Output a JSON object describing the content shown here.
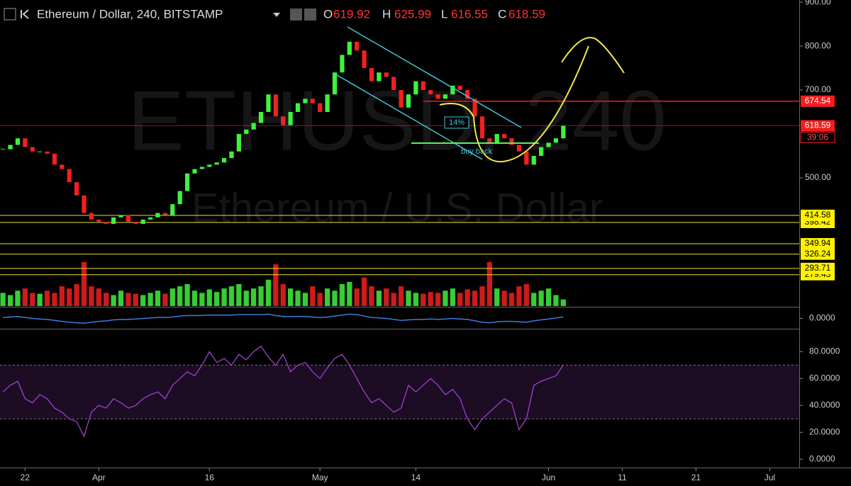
{
  "chart_data": {
    "type": "candlestick",
    "header": {
      "symbol": "Ethereum / Dollar, 240, BITSTAMP",
      "o_label": "O",
      "o": 619.92,
      "h_label": "H",
      "h": 625.99,
      "l_label": "L",
      "l": 616.55,
      "c_label": "C",
      "c": 618.59
    },
    "watermark": {
      "line1": "ETHUSD, 240",
      "line2": "Ethereum / U.S. Dollar"
    },
    "annotations": {
      "percent": "14%",
      "buy": "buy back"
    },
    "countdown": "39:06",
    "xlim": [
      -0.4,
      108
    ],
    "xticks": [
      {
        "value": 3,
        "label": "22"
      },
      {
        "value": 13,
        "label": "Apr"
      },
      {
        "value": 28,
        "label": "16"
      },
      {
        "value": 43,
        "label": "May"
      },
      {
        "value": 56,
        "label": "14"
      },
      {
        "value": 74,
        "label": "Jun"
      },
      {
        "value": 84,
        "label": "11"
      },
      {
        "value": 94,
        "label": "21"
      },
      {
        "value": 104,
        "label": "Jul"
      }
    ],
    "ylim": [
      208,
      905
    ],
    "yticks": [
      {
        "value": 900,
        "label": "900.00"
      },
      {
        "value": 800,
        "label": "800.00"
      },
      {
        "value": 700,
        "label": "700.00"
      },
      {
        "value": 500,
        "label": "500.00"
      }
    ],
    "up_color": "#3ef23e",
    "down_color": "#f22020",
    "close": [
      565,
      575,
      590,
      570,
      560,
      560,
      555,
      530,
      520,
      490,
      460,
      420,
      405,
      400,
      395,
      410,
      415,
      400,
      395,
      405,
      410,
      420,
      415,
      440,
      470,
      510,
      520,
      525,
      530,
      535,
      545,
      560,
      600,
      610,
      625,
      650,
      690,
      640,
      620,
      650,
      670,
      680,
      670,
      650,
      690,
      740,
      780,
      810,
      790,
      750,
      720,
      740,
      730,
      700,
      660,
      690,
      720,
      700,
      690,
      680,
      690,
      710,
      700,
      680,
      640,
      590,
      580,
      600,
      590,
      575,
      560,
      530,
      550,
      570,
      580,
      590,
      618.59
    ],
    "levels": [
      {
        "value": 674.54,
        "color": "#f21d1d"
      },
      {
        "value": 618.59,
        "color": "#f21d1d"
      },
      {
        "value": 414.58,
        "color": "#e8e23a"
      },
      {
        "value": 398.42,
        "color": "#e8e23a"
      },
      {
        "value": 349.94,
        "color": "#e8e23a"
      },
      {
        "value": 326.24,
        "color": "#e8e23a"
      },
      {
        "value": 293.71,
        "color": "#e8e23a"
      },
      {
        "value": 279.43,
        "color": "#e8e23a"
      }
    ],
    "volume": {
      "ylim": [
        0,
        100
      ],
      "values": [
        30,
        25,
        35,
        40,
        30,
        28,
        35,
        30,
        45,
        40,
        50,
        100,
        45,
        40,
        30,
        25,
        35,
        30,
        28,
        25,
        30,
        35,
        28,
        40,
        45,
        50,
        35,
        30,
        38,
        32,
        40,
        45,
        50,
        35,
        40,
        45,
        60,
        95,
        50,
        40,
        35,
        30,
        45,
        30,
        40,
        35,
        50,
        55,
        40,
        65,
        45,
        35,
        40,
        30,
        45,
        35,
        30,
        28,
        32,
        30,
        35,
        40,
        30,
        38,
        35,
        45,
        100,
        40,
        35,
        30,
        45,
        50,
        30,
        35,
        40,
        25,
        15
      ]
    },
    "macd": {
      "color": "#3d7bd9",
      "ylim": [
        -20,
        20
      ],
      "yticks": [
        {
          "value": 0,
          "label": "0.0000"
        }
      ],
      "values": [
        2,
        3,
        4,
        2,
        0,
        -1,
        -2,
        -4,
        -6,
        -8,
        -9,
        -10,
        -8,
        -6,
        -5,
        -3,
        -2,
        -2,
        -1,
        0,
        1,
        2,
        2,
        3,
        5,
        6,
        6,
        6,
        7,
        7,
        7,
        7,
        8,
        8,
        8,
        8,
        9,
        6,
        4,
        4,
        4,
        4,
        3,
        2,
        3,
        5,
        7,
        9,
        8,
        5,
        2,
        1,
        0,
        -2,
        -4,
        -3,
        -2,
        -2,
        -1,
        -2,
        -1,
        0,
        -1,
        -2,
        -5,
        -8,
        -9,
        -7,
        -6,
        -6,
        -7,
        -8,
        -5,
        -3,
        -1,
        1,
        3
      ]
    },
    "rsi": {
      "color": "#a23fcf",
      "ylim": [
        -6.2,
        96
      ],
      "bands": [
        30,
        70
      ],
      "yticks": [
        {
          "value": 80,
          "label": "80.0000"
        },
        {
          "value": 60,
          "label": "60.0000"
        },
        {
          "value": 40,
          "label": "40.0000"
        },
        {
          "value": 20,
          "label": "20.0000"
        },
        {
          "value": 0,
          "label": "0.0000"
        }
      ],
      "values": [
        50,
        55,
        58,
        45,
        42,
        48,
        45,
        38,
        35,
        30,
        28,
        17,
        35,
        40,
        38,
        45,
        42,
        38,
        40,
        45,
        48,
        50,
        45,
        55,
        60,
        65,
        62,
        70,
        80,
        72,
        75,
        70,
        78,
        74,
        80,
        84,
        76,
        70,
        78,
        65,
        70,
        72,
        65,
        60,
        68,
        75,
        78,
        70,
        60,
        50,
        42,
        45,
        40,
        35,
        38,
        55,
        50,
        55,
        60,
        55,
        48,
        52,
        45,
        30,
        22,
        30,
        35,
        40,
        45,
        42,
        22,
        30,
        55,
        58,
        60,
        62,
        70
      ]
    }
  }
}
